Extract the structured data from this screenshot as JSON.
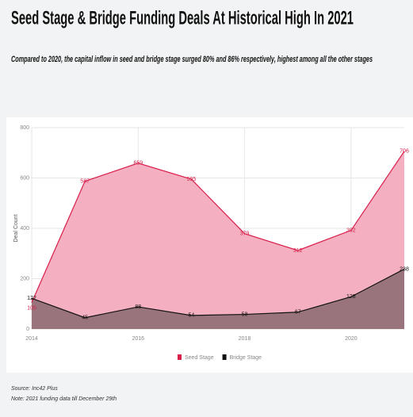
{
  "chart_data": {
    "type": "area",
    "title": "Seed Stage & Bridge Funding Deals At Historical High In 2021",
    "subtitle": "Compared to 2020, the capital inflow in seed and bridge stage surged 80% and 86% respectively, highest among all the other stages",
    "y_label": "Deal Count",
    "x": [
      2014,
      2015,
      2016,
      2017,
      2018,
      2019,
      2020,
      2021
    ],
    "series": [
      {
        "name": "Seed Stage",
        "color": "#d81e4a",
        "fill": "#f4afc0",
        "values": [
          105,
          587,
          659,
          595,
          379,
          312,
          392,
          706
        ]
      },
      {
        "name": "Bridge Stage",
        "color": "#111111",
        "fill": "#8a6a70",
        "values": [
          122,
          45,
          88,
          54,
          58,
          67,
          128,
          238
        ]
      }
    ],
    "xlim": [
      2014,
      2021
    ],
    "xticks": [
      2014,
      2016,
      2018,
      2020
    ],
    "ylim": [
      0,
      800
    ],
    "yticks": [
      0,
      200,
      400,
      600,
      800
    ],
    "grid": true,
    "source": "Source: Inc42 Plus",
    "note": "Note: 2021 funding data till December 29th"
  }
}
